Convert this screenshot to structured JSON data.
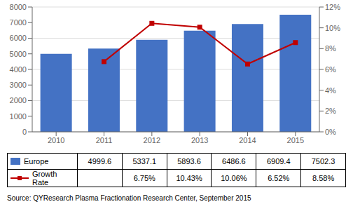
{
  "chart_data": {
    "type": "bar",
    "categories": [
      "2010",
      "2011",
      "2012",
      "2013",
      "2014",
      "2015"
    ],
    "series": [
      {
        "name": "Europe",
        "type": "bar",
        "color": "#4472C4",
        "values": [
          4999.6,
          5337.1,
          5893.6,
          6486.6,
          6909.4,
          7502.3
        ]
      },
      {
        "name": "Growth Rate",
        "type": "line",
        "axis": "y2",
        "color": "#C00000",
        "marker": "square",
        "values": [
          null,
          0.0675,
          0.1043,
          0.1006,
          0.0652,
          0.0858
        ],
        "value_labels": [
          null,
          "6.75%",
          "10.43%",
          "10.06%",
          "6.52%",
          "8.58%"
        ]
      }
    ],
    "ylim": [
      0,
      8000
    ],
    "yticks": [
      0,
      1000,
      2000,
      3000,
      4000,
      5000,
      6000,
      7000,
      8000
    ],
    "y2lim": [
      0,
      0.12
    ],
    "y2ticks": [
      {
        "value": 0.0,
        "label": "0%"
      },
      {
        "value": 0.02,
        "label": "2%"
      },
      {
        "value": 0.04,
        "label": "4%"
      },
      {
        "value": 0.06,
        "label": "6%"
      },
      {
        "value": 0.08,
        "label": "8%"
      },
      {
        "value": 0.1,
        "label": "10%"
      },
      {
        "value": 0.12,
        "label": "12%"
      }
    ],
    "grid": true,
    "annotations": [
      "Source: QYResearch Plasma Fractionation Research Center, September 2015"
    ]
  }
}
